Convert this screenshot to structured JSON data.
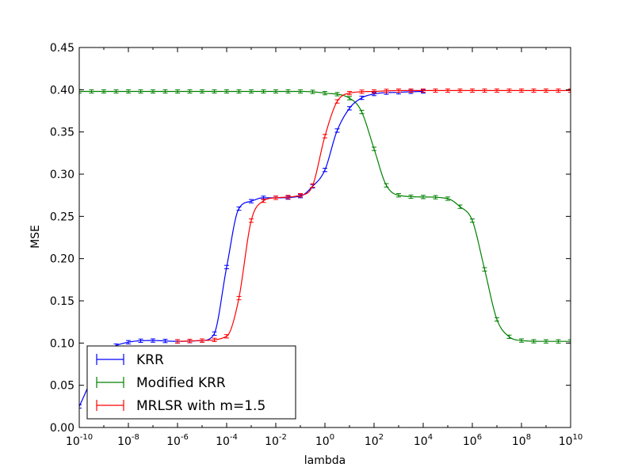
{
  "chart_data": {
    "type": "line",
    "title": "",
    "xlabel": "lambda",
    "ylabel": "MSE",
    "xscale": "log",
    "xlim": [
      1e-10,
      10000000000.0
    ],
    "ylim": [
      0.0,
      0.45
    ],
    "x_ticks": [
      {
        "base": "10",
        "exp": "-10"
      },
      {
        "base": "10",
        "exp": "-8"
      },
      {
        "base": "10",
        "exp": "-6"
      },
      {
        "base": "10",
        "exp": "-4"
      },
      {
        "base": "10",
        "exp": "-2"
      },
      {
        "base": "10",
        "exp": "0"
      },
      {
        "base": "10",
        "exp": "2"
      },
      {
        "base": "10",
        "exp": "4"
      },
      {
        "base": "10",
        "exp": "6"
      },
      {
        "base": "10",
        "exp": "8"
      },
      {
        "base": "10",
        "exp": "10"
      }
    ],
    "y_ticks": [
      "0.00",
      "0.05",
      "0.10",
      "0.15",
      "0.20",
      "0.25",
      "0.30",
      "0.35",
      "0.40",
      "0.45"
    ],
    "grid": false,
    "legend_position": "lower-left",
    "series": [
      {
        "name": "KRR",
        "color": "#0000ff",
        "x": [
          1e-10,
          1e-09,
          1e-08,
          1e-07,
          1e-06,
          1e-05,
          3e-05,
          0.0001,
          0.0003,
          0.001,
          0.003,
          0.01,
          0.1,
          0.3,
          1,
          3,
          10,
          30,
          100,
          1000,
          10000.0
        ],
        "y": [
          0.025,
          0.085,
          0.101,
          0.103,
          0.102,
          0.103,
          0.11,
          0.19,
          0.258,
          0.268,
          0.272,
          0.272,
          0.274,
          0.285,
          0.305,
          0.35,
          0.378,
          0.39,
          0.395,
          0.397,
          0.398
        ],
        "errorbar": 0.002
      },
      {
        "name": "Modified KRR",
        "color": "#008000",
        "x": [
          1e-10,
          0.0001,
          0.1,
          1,
          10,
          30,
          100,
          300,
          1000,
          10000.0,
          100000.0,
          300000.0,
          1000000.0,
          3000000.0,
          10000000.0,
          30000000.0,
          100000000.0,
          1000000000.0,
          10000000000.0
        ],
        "y": [
          0.398,
          0.398,
          0.398,
          0.396,
          0.39,
          0.375,
          0.33,
          0.288,
          0.275,
          0.273,
          0.271,
          0.262,
          0.245,
          0.19,
          0.128,
          0.108,
          0.103,
          0.102,
          0.102
        ],
        "errorbar": 0.002
      },
      {
        "name": "MRLSR with m=1.5",
        "color": "#ff0000",
        "x": [
          1e-06,
          1e-05,
          0.0001,
          0.0003,
          0.001,
          0.003,
          0.01,
          0.1,
          0.3,
          1,
          3,
          10,
          100,
          1000,
          10000000000.0
        ],
        "y": [
          0.102,
          0.103,
          0.108,
          0.15,
          0.245,
          0.268,
          0.272,
          0.275,
          0.285,
          0.345,
          0.385,
          0.396,
          0.398,
          0.399,
          0.399
        ],
        "errorbar": 0.002
      }
    ]
  }
}
